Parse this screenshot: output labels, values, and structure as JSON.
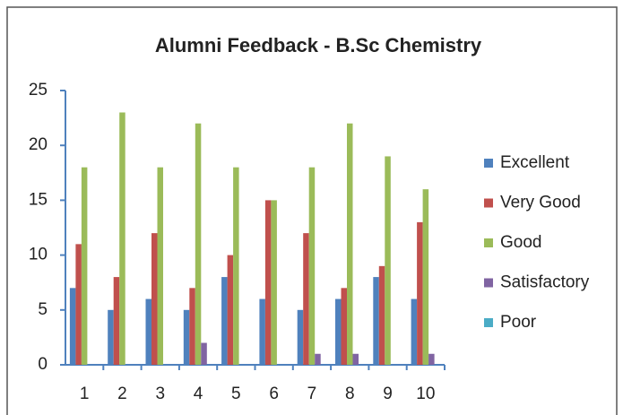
{
  "chart_data": {
    "type": "bar",
    "title": "Alumni Feedback - B.Sc Chemistry",
    "categories": [
      "1",
      "2",
      "3",
      "4",
      "5",
      "6",
      "7",
      "8",
      "9",
      "10"
    ],
    "series": [
      {
        "name": "Excellent",
        "color": "#4f81bd",
        "values": [
          7,
          5,
          6,
          5,
          8,
          6,
          5,
          6,
          8,
          6
        ]
      },
      {
        "name": "Very Good",
        "color": "#c0504d",
        "values": [
          11,
          8,
          12,
          7,
          10,
          15,
          12,
          7,
          9,
          13
        ]
      },
      {
        "name": "Good",
        "color": "#9bbb59",
        "values": [
          18,
          23,
          18,
          22,
          18,
          15,
          18,
          22,
          19,
          16
        ]
      },
      {
        "name": "Satisfactory",
        "color": "#8064a2",
        "values": [
          0,
          0,
          0,
          2,
          0,
          0,
          1,
          1,
          0,
          1
        ]
      },
      {
        "name": "Poor",
        "color": "#4bacc6",
        "values": [
          0,
          0,
          0,
          0,
          0,
          0,
          0,
          0,
          0,
          0
        ]
      }
    ],
    "ylim": [
      0,
      25
    ],
    "yticks": [
      0,
      5,
      10,
      15,
      20,
      25
    ],
    "legend": "right"
  }
}
